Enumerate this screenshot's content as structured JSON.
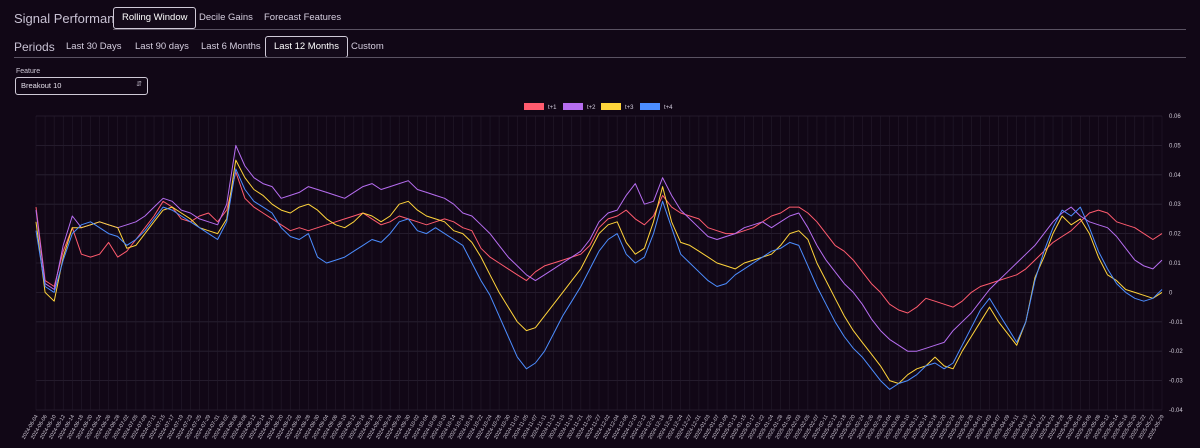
{
  "header": {
    "title": "Signal Performance",
    "tabs": [
      {
        "label": "Rolling Window",
        "active": true
      },
      {
        "label": "Decile Gains",
        "active": false
      },
      {
        "label": "Forecast Features",
        "active": false
      }
    ]
  },
  "periods": {
    "label": "Periods",
    "options": [
      {
        "label": "Last 30 Days",
        "active": false
      },
      {
        "label": "Last 90 days",
        "active": false
      },
      {
        "label": "Last 6 Months",
        "active": false
      },
      {
        "label": "Last 12 Months",
        "active": true
      },
      {
        "label": "Custom",
        "active": false
      }
    ]
  },
  "feature": {
    "label": "Feature",
    "value": "Breakout 10"
  },
  "chart_data": {
    "type": "line",
    "title": "",
    "xlabel": "",
    "ylabel": "",
    "ylim": [
      -0.04,
      0.06
    ],
    "y_ticks": [
      0.06,
      0.05,
      0.04,
      0.03,
      0.02,
      0.01,
      0,
      -0.01,
      -0.02,
      -0.03,
      -0.04
    ],
    "y_tick_labels": [
      "0.06",
      "0.05",
      "0.04",
      "0.03",
      "0.02",
      "0.01",
      "0",
      "-0.01",
      "-0.02",
      "-0.03",
      "-0.04"
    ],
    "grid": true,
    "legend_position": "top-center",
    "x": [
      "2024-06-04",
      "2024-06-06",
      "2024-06-10",
      "2024-06-12",
      "2024-06-14",
      "2024-06-18",
      "2024-06-20",
      "2024-06-24",
      "2024-06-26",
      "2024-06-28",
      "2024-07-02",
      "2024-07-05",
      "2024-07-09",
      "2024-07-11",
      "2024-07-15",
      "2024-07-17",
      "2024-07-19",
      "2024-07-23",
      "2024-07-25",
      "2024-07-29",
      "2024-07-31",
      "2024-08-02",
      "2024-08-06",
      "2024-08-08",
      "2024-08-12",
      "2024-08-14",
      "2024-08-16",
      "2024-08-20",
      "2024-08-22",
      "2024-08-26",
      "2024-08-28",
      "2024-08-30",
      "2024-09-04",
      "2024-09-06",
      "2024-09-10",
      "2024-09-12",
      "2024-09-16",
      "2024-09-18",
      "2024-09-20",
      "2024-09-24",
      "2024-09-26",
      "2024-09-30",
      "2024-10-02",
      "2024-10-04",
      "2024-10-08",
      "2024-10-10",
      "2024-10-14",
      "2024-10-16",
      "2024-10-18",
      "2024-10-22",
      "2024-10-24",
      "2024-10-28",
      "2024-10-30",
      "2024-11-01",
      "2024-11-05",
      "2024-11-07",
      "2024-11-11",
      "2024-11-13",
      "2024-11-15",
      "2024-11-19",
      "2024-11-21",
      "2024-11-25",
      "2024-11-27",
      "2024-12-02",
      "2024-12-04",
      "2024-12-06",
      "2024-12-10",
      "2024-12-12",
      "2024-12-16",
      "2024-12-18",
      "2024-12-20",
      "2024-12-24",
      "2024-12-27",
      "2024-12-31",
      "2025-01-03",
      "2025-01-07",
      "2025-01-09",
      "2025-01-13",
      "2025-01-15",
      "2025-01-17",
      "2025-01-22",
      "2025-01-24",
      "2025-01-28",
      "2025-01-30",
      "2025-02-03",
      "2025-02-05",
      "2025-02-07",
      "2025-02-11",
      "2025-02-13",
      "2025-02-18",
      "2025-02-20",
      "2025-02-24",
      "2025-02-26",
      "2025-02-28",
      "2025-03-04",
      "2025-03-06",
      "2025-03-10",
      "2025-03-12",
      "2025-03-14",
      "2025-03-18",
      "2025-03-20",
      "2025-03-24",
      "2025-03-26",
      "2025-03-28",
      "2025-04-01",
      "2025-04-03",
      "2025-04-07",
      "2025-04-09",
      "2025-04-11",
      "2025-04-15",
      "2025-04-17",
      "2025-04-22",
      "2025-04-24",
      "2025-04-28",
      "2025-04-30",
      "2025-05-02",
      "2025-05-06",
      "2025-05-08",
      "2025-05-12",
      "2025-05-14",
      "2025-05-16",
      "2025-05-20",
      "2025-05-22",
      "2025-05-27",
      "2025-05-29"
    ],
    "series": [
      {
        "name": "t+1",
        "color": "#ff5b6e",
        "values": [
          0.029,
          0.004,
          0.002,
          0.014,
          0.022,
          0.013,
          0.012,
          0.013,
          0.017,
          0.012,
          0.014,
          0.018,
          0.022,
          0.026,
          0.031,
          0.029,
          0.025,
          0.024,
          0.026,
          0.027,
          0.024,
          0.028,
          0.041,
          0.032,
          0.029,
          0.027,
          0.025,
          0.023,
          0.021,
          0.022,
          0.021,
          0.022,
          0.023,
          0.024,
          0.025,
          0.026,
          0.027,
          0.025,
          0.023,
          0.024,
          0.026,
          0.025,
          0.024,
          0.023,
          0.024,
          0.025,
          0.024,
          0.022,
          0.021,
          0.015,
          0.012,
          0.01,
          0.008,
          0.006,
          0.004,
          0.007,
          0.009,
          0.01,
          0.011,
          0.012,
          0.013,
          0.016,
          0.022,
          0.025,
          0.026,
          0.028,
          0.025,
          0.023,
          0.026,
          0.033,
          0.029,
          0.027,
          0.026,
          0.025,
          0.022,
          0.021,
          0.02,
          0.02,
          0.021,
          0.022,
          0.024,
          0.026,
          0.027,
          0.029,
          0.029,
          0.027,
          0.024,
          0.02,
          0.016,
          0.014,
          0.011,
          0.007,
          0.003,
          0.0,
          -0.004,
          -0.006,
          -0.007,
          -0.005,
          -0.002,
          -0.003,
          -0.004,
          -0.005,
          -0.003,
          0.0,
          0.002,
          0.003,
          0.004,
          0.005,
          0.006,
          0.008,
          0.011,
          0.014,
          0.017,
          0.019,
          0.021,
          0.024,
          0.027,
          0.028,
          0.027,
          0.024,
          0.023,
          0.022,
          0.02,
          0.018,
          0.02
        ]
      },
      {
        "name": "t+2",
        "color": "#b66df0",
        "values": [
          0.028,
          0.003,
          0.001,
          0.016,
          0.026,
          0.022,
          0.023,
          0.024,
          0.023,
          0.022,
          0.023,
          0.024,
          0.026,
          0.029,
          0.032,
          0.031,
          0.028,
          0.027,
          0.025,
          0.024,
          0.023,
          0.03,
          0.05,
          0.043,
          0.039,
          0.037,
          0.036,
          0.032,
          0.033,
          0.034,
          0.036,
          0.035,
          0.034,
          0.033,
          0.032,
          0.034,
          0.036,
          0.037,
          0.035,
          0.036,
          0.037,
          0.038,
          0.035,
          0.034,
          0.033,
          0.032,
          0.03,
          0.027,
          0.026,
          0.023,
          0.02,
          0.016,
          0.012,
          0.009,
          0.006,
          0.004,
          0.006,
          0.008,
          0.01,
          0.012,
          0.014,
          0.018,
          0.024,
          0.027,
          0.028,
          0.033,
          0.037,
          0.03,
          0.031,
          0.039,
          0.033,
          0.028,
          0.025,
          0.022,
          0.019,
          0.018,
          0.019,
          0.02,
          0.022,
          0.023,
          0.024,
          0.022,
          0.024,
          0.026,
          0.027,
          0.022,
          0.016,
          0.011,
          0.007,
          0.003,
          0.0,
          -0.004,
          -0.009,
          -0.013,
          -0.016,
          -0.018,
          -0.02,
          -0.02,
          -0.019,
          -0.018,
          -0.017,
          -0.013,
          -0.01,
          -0.007,
          -0.003,
          0.001,
          0.004,
          0.007,
          0.01,
          0.013,
          0.016,
          0.02,
          0.024,
          0.027,
          0.029,
          0.026,
          0.024,
          0.023,
          0.022,
          0.019,
          0.015,
          0.011,
          0.009,
          0.008,
          0.011
        ]
      },
      {
        "name": "t+3",
        "color": "#ffd43b",
        "values": [
          0.024,
          0.0,
          -0.003,
          0.012,
          0.022,
          0.022,
          0.023,
          0.024,
          0.023,
          0.022,
          0.015,
          0.016,
          0.02,
          0.024,
          0.028,
          0.029,
          0.027,
          0.025,
          0.022,
          0.021,
          0.02,
          0.025,
          0.045,
          0.039,
          0.035,
          0.033,
          0.03,
          0.028,
          0.027,
          0.029,
          0.03,
          0.028,
          0.025,
          0.023,
          0.022,
          0.024,
          0.027,
          0.026,
          0.024,
          0.026,
          0.03,
          0.031,
          0.028,
          0.026,
          0.025,
          0.024,
          0.021,
          0.02,
          0.017,
          0.012,
          0.006,
          0.0,
          -0.005,
          -0.01,
          -0.013,
          -0.012,
          -0.008,
          -0.004,
          0.0,
          0.004,
          0.008,
          0.014,
          0.02,
          0.023,
          0.024,
          0.017,
          0.013,
          0.015,
          0.024,
          0.036,
          0.024,
          0.017,
          0.016,
          0.014,
          0.012,
          0.01,
          0.009,
          0.008,
          0.01,
          0.011,
          0.012,
          0.013,
          0.016,
          0.02,
          0.021,
          0.018,
          0.01,
          0.004,
          -0.002,
          -0.008,
          -0.013,
          -0.017,
          -0.021,
          -0.025,
          -0.03,
          -0.031,
          -0.028,
          -0.026,
          -0.025,
          -0.022,
          -0.025,
          -0.026,
          -0.02,
          -0.015,
          -0.01,
          -0.005,
          -0.01,
          -0.014,
          -0.018,
          -0.01,
          0.005,
          0.012,
          0.02,
          0.026,
          0.023,
          0.025,
          0.02,
          0.012,
          0.006,
          0.004,
          0.001,
          0.0,
          -0.001,
          -0.002,
          0.0
        ]
      },
      {
        "name": "t+4",
        "color": "#4c8dff",
        "values": [
          0.021,
          0.002,
          0.0,
          0.011,
          0.02,
          0.023,
          0.024,
          0.022,
          0.02,
          0.019,
          0.016,
          0.018,
          0.021,
          0.025,
          0.029,
          0.028,
          0.026,
          0.024,
          0.022,
          0.02,
          0.018,
          0.024,
          0.042,
          0.035,
          0.031,
          0.029,
          0.027,
          0.022,
          0.019,
          0.018,
          0.02,
          0.012,
          0.01,
          0.011,
          0.012,
          0.014,
          0.016,
          0.018,
          0.017,
          0.02,
          0.024,
          0.025,
          0.021,
          0.02,
          0.022,
          0.02,
          0.018,
          0.016,
          0.01,
          0.004,
          -0.001,
          -0.008,
          -0.015,
          -0.022,
          -0.026,
          -0.024,
          -0.02,
          -0.014,
          -0.008,
          -0.003,
          0.002,
          0.008,
          0.014,
          0.018,
          0.02,
          0.013,
          0.01,
          0.012,
          0.02,
          0.031,
          0.022,
          0.013,
          0.01,
          0.007,
          0.004,
          0.002,
          0.003,
          0.006,
          0.008,
          0.01,
          0.012,
          0.014,
          0.015,
          0.017,
          0.016,
          0.009,
          0.002,
          -0.004,
          -0.01,
          -0.015,
          -0.019,
          -0.022,
          -0.026,
          -0.03,
          -0.033,
          -0.031,
          -0.03,
          -0.028,
          -0.025,
          -0.024,
          -0.026,
          -0.024,
          -0.018,
          -0.012,
          -0.006,
          -0.002,
          -0.007,
          -0.012,
          -0.017,
          -0.01,
          0.004,
          0.014,
          0.022,
          0.028,
          0.026,
          0.029,
          0.022,
          0.014,
          0.008,
          0.003,
          0.0,
          -0.002,
          -0.003,
          -0.002,
          0.001
        ]
      }
    ]
  }
}
